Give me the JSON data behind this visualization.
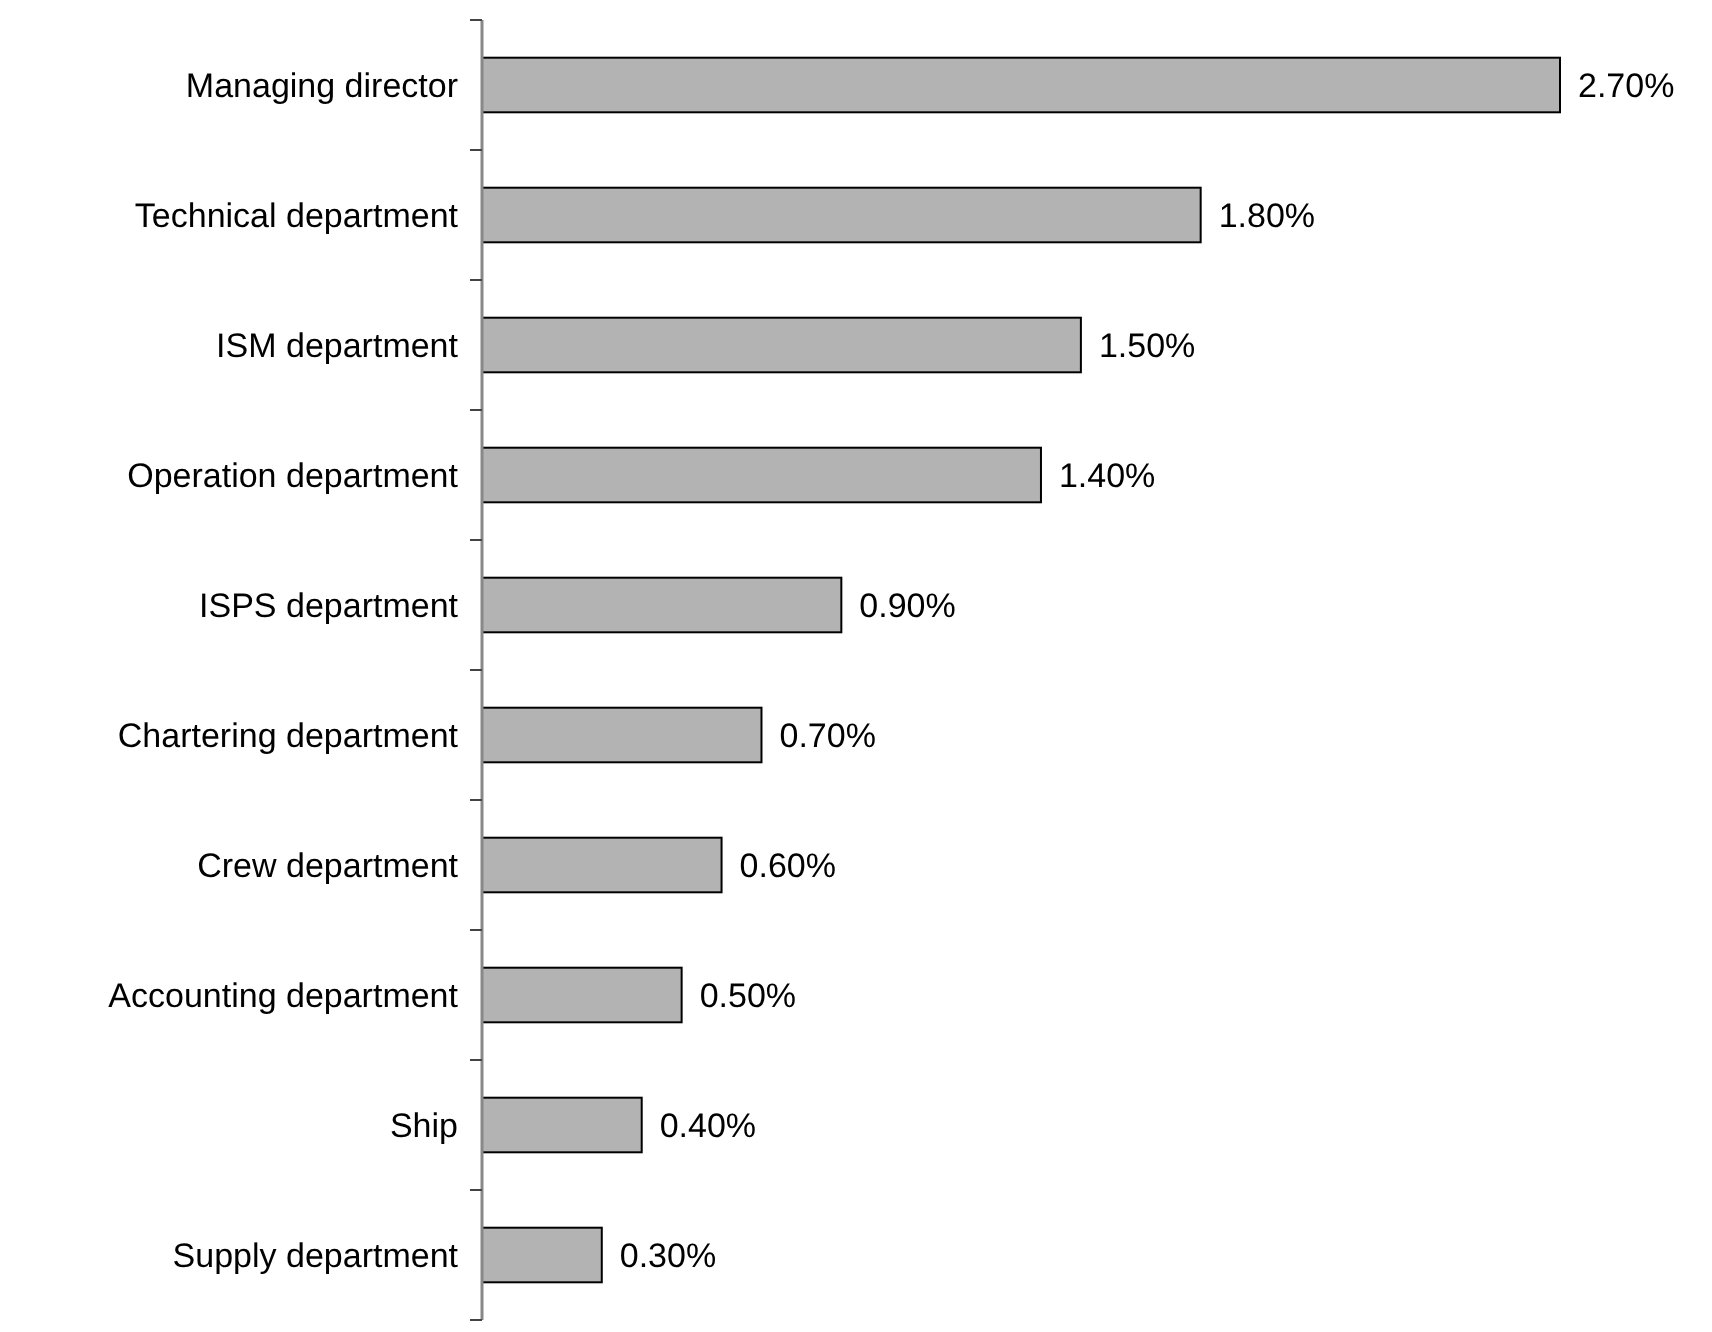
{
  "chart_data": {
    "type": "bar",
    "orientation": "horizontal",
    "categories": [
      "Managing director",
      "Technical department",
      "ISM department",
      "Operation department",
      "ISPS department",
      "Chartering department",
      "Crew department",
      "Accounting department",
      "Ship",
      "Supply department"
    ],
    "values": [
      2.7,
      1.8,
      1.5,
      1.4,
      0.9,
      0.7,
      0.6,
      0.5,
      0.4,
      0.3
    ],
    "value_labels": [
      "2.70%",
      "1.80%",
      "1.50%",
      "1.40%",
      "0.90%",
      "0.70%",
      "0.60%",
      "0.50%",
      "0.40%",
      "0.30%"
    ],
    "color": "#b3b3b3",
    "xlim": [
      0,
      2.7
    ],
    "tick_labels": "y"
  }
}
